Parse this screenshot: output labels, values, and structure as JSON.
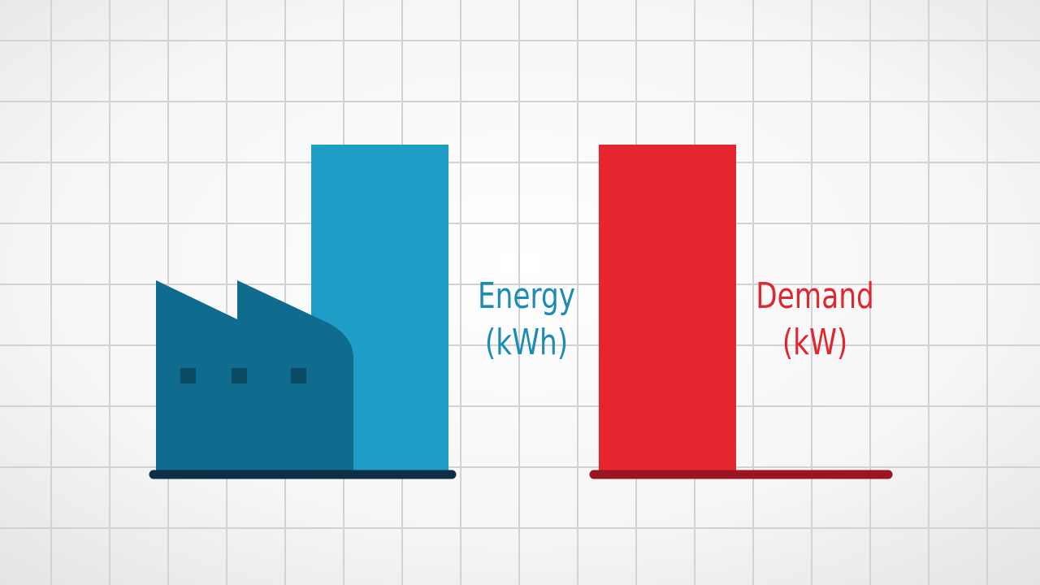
{
  "labels": {
    "energy": {
      "name": "Energy",
      "unit": "(kWh)"
    },
    "demand": {
      "name": "Demand",
      "unit": "(kW)"
    }
  }
}
